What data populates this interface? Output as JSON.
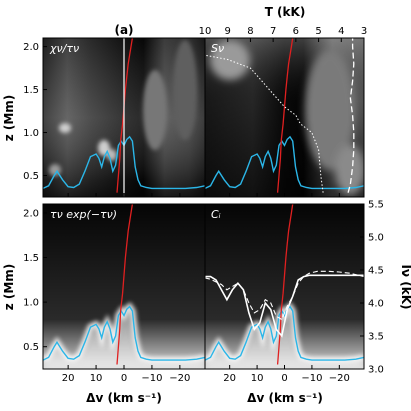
{
  "chart_data": {
    "type": "line",
    "title": "(a)",
    "xlabel": "Δv (km s⁻¹)",
    "ylabel": "z (Mm)",
    "top_xlabel": "T (kK)",
    "right_ylabel": "Iν (kK)",
    "xlim": [
      29,
      -29
    ],
    "ylim": [
      0.25,
      2.1
    ],
    "top_xlim": [
      10,
      3
    ],
    "right_ylim": [
      3.0,
      5.5
    ],
    "x_ticks": [
      "20",
      "10",
      "0",
      "−10",
      "−20"
    ],
    "x_tick_values": [
      20,
      10,
      0,
      -10,
      -20
    ],
    "y_ticks": [
      "0.5",
      "1.0",
      "1.5",
      "2.0"
    ],
    "y_tick_values": [
      0.5,
      1.0,
      1.5,
      2.0
    ],
    "top_ticks": [
      "10",
      "9",
      "8",
      "7",
      "6",
      "5",
      "4",
      "3"
    ],
    "top_tick_values": [
      10,
      9,
      8,
      7,
      6,
      5,
      4,
      3
    ],
    "right_ticks": [
      "3.0",
      "3.5",
      "4.0",
      "4.5",
      "5.0",
      "5.5"
    ],
    "right_tick_values": [
      3.0,
      3.5,
      4.0,
      4.5,
      5.0,
      5.5
    ],
    "panels": [
      {
        "id": "tl",
        "label": "χν/τν"
      },
      {
        "id": "tr",
        "label": "Sν"
      },
      {
        "id": "bl",
        "label": "τν exp(−τν)"
      },
      {
        "id": "br",
        "label": "Cᵢ"
      }
    ],
    "tau_unity": {
      "x": [
        29,
        27,
        25,
        24,
        22,
        20,
        18,
        16,
        14,
        12,
        10,
        9,
        8,
        7,
        6,
        5,
        4,
        3,
        2,
        1,
        0,
        -1,
        -2,
        -3,
        -4,
        -5,
        -6,
        -8,
        -10,
        -14,
        -18,
        -22,
        -26,
        -29
      ],
      "z": [
        0.35,
        0.38,
        0.5,
        0.55,
        0.45,
        0.37,
        0.36,
        0.4,
        0.55,
        0.72,
        0.75,
        0.7,
        0.6,
        0.72,
        0.78,
        0.7,
        0.55,
        0.62,
        0.85,
        0.9,
        0.85,
        0.92,
        0.95,
        0.9,
        0.6,
        0.45,
        0.38,
        0.36,
        0.35,
        0.35,
        0.35,
        0.35,
        0.36,
        0.38
      ]
    },
    "velocity": {
      "dv": [
        2.5,
        2.0,
        1.5,
        1.2,
        0.5,
        0.0,
        -0.5,
        -1.0,
        -1.5,
        -2.0,
        -2.5,
        -3.0
      ],
      "z": [
        0.3,
        0.5,
        0.7,
        0.9,
        1.1,
        1.3,
        1.5,
        1.65,
        1.8,
        1.9,
        2.0,
        2.1
      ]
    },
    "temperature": {
      "T": [
        5.8,
        5.9,
        6.0,
        6.1,
        6.2,
        6.3,
        6.5,
        6.8,
        7.0,
        7.5,
        8.5,
        10.0
      ],
      "z": [
        0.3,
        0.4,
        0.5,
        0.6,
        0.7,
        0.8,
        0.9,
        0.95,
        1.0,
        1.02,
        1.04,
        1.05
      ]
    },
    "source_function": {
      "T": [
        4.8,
        4.9,
        5.0,
        5.3,
        5.8,
        6.0,
        6.5,
        7.0,
        7.5,
        8.0,
        9.0,
        10.0
      ],
      "z": [
        0.3,
        0.5,
        0.8,
        1.0,
        1.1,
        1.2,
        1.3,
        1.45,
        1.6,
        1.75,
        1.85,
        1.9
      ]
    },
    "planck": {
      "T": [
        3.7,
        3.6,
        3.5,
        3.45,
        3.45,
        3.5,
        3.6,
        3.5,
        3.45,
        3.5,
        3.5
      ],
      "z": [
        0.3,
        0.4,
        0.6,
        0.8,
        1.0,
        1.2,
        1.4,
        1.6,
        1.8,
        2.0,
        2.1
      ]
    },
    "intensity_profile": {
      "dv": [
        29,
        27,
        25,
        23,
        21,
        19,
        17,
        15,
        13,
        11,
        9,
        7,
        5,
        3,
        1,
        -1,
        -3,
        -5,
        -7,
        -9,
        -11,
        -14,
        -17,
        -20,
        -23,
        -26,
        -29
      ],
      "I": [
        4.4,
        4.4,
        4.35,
        4.2,
        4.05,
        4.2,
        4.3,
        4.2,
        3.85,
        3.6,
        3.7,
        4.0,
        3.9,
        3.6,
        3.5,
        3.9,
        4.1,
        4.35,
        4.4,
        4.42,
        4.42,
        4.42,
        4.42,
        4.42,
        4.42,
        4.42,
        4.42
      ]
    },
    "intensity_profile_dashed": {
      "dv": [
        29,
        27,
        25,
        23,
        21,
        19,
        17,
        15,
        13,
        11,
        9,
        7,
        5,
        3,
        1,
        -1,
        -3,
        -5,
        -7,
        -9,
        -12,
        -16,
        -20,
        -24,
        -29
      ],
      "I": [
        4.38,
        4.36,
        4.32,
        4.28,
        4.2,
        4.25,
        4.3,
        4.2,
        4.0,
        3.85,
        3.9,
        4.05,
        4.0,
        3.8,
        3.75,
        3.95,
        4.1,
        4.3,
        4.4,
        4.45,
        4.48,
        4.48,
        4.47,
        4.45,
        4.4
      ]
    }
  }
}
